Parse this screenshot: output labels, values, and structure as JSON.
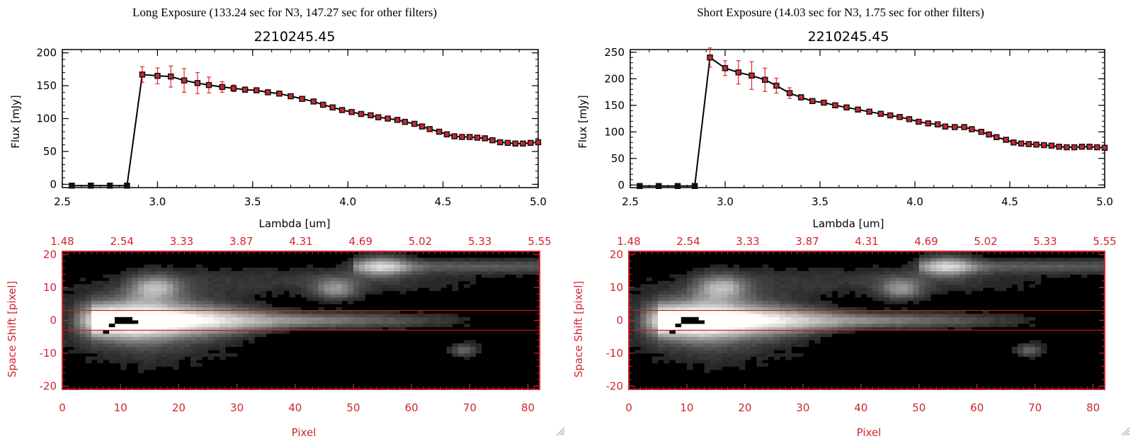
{
  "colors": {
    "axis": "#000000",
    "error_bar": "#e0262d",
    "marker_fill": "#d0262d",
    "image_frame": "#d0262d",
    "aperture_line": "#c81e1e"
  },
  "chart_data": [
    {
      "type": "line",
      "header": "Long Exposure (133.24 sec for N3, 147.27 sec for other filters)",
      "title": "2210245.45",
      "xlabel": "Lambda [um]",
      "ylabel": "Flux [mJy]",
      "xlim": [
        2.5,
        5.0
      ],
      "ylim": [
        -5,
        205
      ],
      "xticks": [
        "2.5",
        "3.0",
        "3.5",
        "4.0",
        "4.5",
        "5.0"
      ],
      "yticks": [
        "0",
        "50",
        "100",
        "150",
        "200"
      ],
      "x": [
        2.55,
        2.65,
        2.75,
        2.84,
        2.92,
        3.0,
        3.07,
        3.14,
        3.21,
        3.27,
        3.34,
        3.4,
        3.46,
        3.52,
        3.58,
        3.64,
        3.7,
        3.76,
        3.82,
        3.87,
        3.92,
        3.97,
        4.02,
        4.07,
        4.12,
        4.16,
        4.21,
        4.26,
        4.3,
        4.35,
        4.39,
        4.43,
        4.48,
        4.52,
        4.56,
        4.6,
        4.64,
        4.68,
        4.72,
        4.76,
        4.8,
        4.84,
        4.88,
        4.92,
        4.96,
        5.0
      ],
      "y": [
        -2,
        -2,
        -2,
        -2,
        167,
        165,
        164,
        158,
        154,
        151,
        148,
        146,
        144,
        143,
        140,
        138,
        134,
        130,
        126,
        121,
        117,
        113,
        110,
        107,
        105,
        102,
        100,
        98,
        95,
        92,
        88,
        84,
        80,
        76,
        73,
        72,
        72,
        71,
        70,
        67,
        64,
        63,
        62,
        62,
        63,
        64
      ],
      "yerr": [
        0,
        0,
        0,
        0,
        12,
        12,
        16,
        18,
        16,
        12,
        8,
        5,
        4,
        3,
        3,
        3,
        3,
        3,
        3,
        3,
        3,
        3,
        3,
        3,
        3,
        3,
        3,
        3,
        3,
        3,
        3,
        3,
        3,
        3,
        3,
        3,
        3,
        3,
        3,
        3,
        3,
        3,
        3,
        3,
        3,
        3
      ],
      "image": {
        "type": "heatmap",
        "xlabel": "Pixel",
        "ylabel": "Space Shift [pixel]",
        "xlim": [
          0,
          82
        ],
        "ylim": [
          -21,
          21
        ],
        "xticks": [
          "0",
          "10",
          "20",
          "30",
          "40",
          "50",
          "60",
          "70",
          "80"
        ],
        "yticks": [
          "-20",
          "-10",
          "0",
          "10",
          "20"
        ],
        "top_ticks": [
          "1.48",
          "2.54",
          "3.33",
          "3.87",
          "4.31",
          "4.69",
          "5.02",
          "5.33",
          "5.55"
        ],
        "aperture": [
          -3,
          3
        ]
      }
    },
    {
      "type": "line",
      "header": "Short Exposure (14.03 sec for N3, 1.75 sec for other filters)",
      "title": "2210245.45",
      "xlabel": "Lambda [um]",
      "ylabel": "Flux [mJy]",
      "xlim": [
        2.5,
        5.0
      ],
      "ylim": [
        -5,
        255
      ],
      "xticks": [
        "2.5",
        "3.0",
        "3.5",
        "4.0",
        "4.5",
        "5.0"
      ],
      "yticks": [
        "0",
        "50",
        "100",
        "150",
        "200",
        "250"
      ],
      "x": [
        2.55,
        2.65,
        2.75,
        2.84,
        2.92,
        3.0,
        3.07,
        3.14,
        3.21,
        3.27,
        3.34,
        3.4,
        3.46,
        3.52,
        3.58,
        3.64,
        3.7,
        3.76,
        3.82,
        3.87,
        3.92,
        3.97,
        4.02,
        4.07,
        4.12,
        4.16,
        4.21,
        4.26,
        4.3,
        4.35,
        4.39,
        4.43,
        4.48,
        4.52,
        4.56,
        4.6,
        4.64,
        4.68,
        4.72,
        4.76,
        4.8,
        4.84,
        4.88,
        4.92,
        4.96,
        5.0
      ],
      "y": [
        -2,
        -2,
        -2,
        -2,
        240,
        220,
        212,
        206,
        198,
        187,
        173,
        165,
        158,
        155,
        150,
        146,
        142,
        138,
        134,
        131,
        128,
        124,
        119,
        116,
        114,
        110,
        109,
        109,
        105,
        100,
        95,
        90,
        85,
        80,
        78,
        77,
        76,
        75,
        74,
        72,
        71,
        71,
        72,
        72,
        71,
        70
      ],
      "yerr": [
        0,
        0,
        0,
        0,
        18,
        14,
        22,
        26,
        22,
        14,
        10,
        5,
        4,
        4,
        3,
        3,
        3,
        3,
        3,
        3,
        3,
        3,
        3,
        3,
        3,
        3,
        3,
        3,
        3,
        3,
        3,
        3,
        3,
        3,
        3,
        3,
        3,
        3,
        3,
        3,
        3,
        3,
        3,
        3,
        3,
        3
      ],
      "image": {
        "type": "heatmap",
        "xlabel": "Pixel",
        "ylabel": "Space Shift [pixel]",
        "xlim": [
          0,
          82
        ],
        "ylim": [
          -21,
          21
        ],
        "xticks": [
          "0",
          "10",
          "20",
          "30",
          "40",
          "50",
          "60",
          "70",
          "80"
        ],
        "yticks": [
          "-20",
          "-10",
          "0",
          "10",
          "20"
        ],
        "top_ticks": [
          "1.48",
          "2.54",
          "3.33",
          "3.87",
          "4.31",
          "4.69",
          "5.02",
          "5.33",
          "5.55"
        ],
        "aperture": [
          -3,
          3
        ]
      }
    }
  ]
}
